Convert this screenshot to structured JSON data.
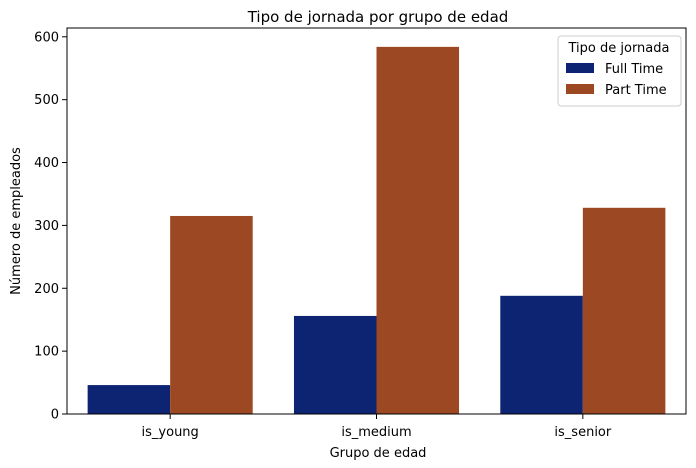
{
  "chart_data": {
    "type": "bar",
    "title": "Tipo de jornada por grupo de edad",
    "xlabel": "Grupo de edad",
    "ylabel": "Número de empleados",
    "categories": [
      "is_young",
      "is_medium",
      "is_senior"
    ],
    "series": [
      {
        "name": "Full Time",
        "color": "#0d2473",
        "values": [
          46,
          156,
          188
        ]
      },
      {
        "name": "Part Time",
        "color": "#9c4822",
        "values": [
          315,
          584,
          328
        ]
      }
    ],
    "ylim": [
      0,
      614
    ],
    "yticks": [
      0,
      100,
      200,
      300,
      400,
      500,
      600
    ],
    "grid": false,
    "legend": {
      "title": "Tipo de jornada",
      "placement": "top-right"
    }
  }
}
